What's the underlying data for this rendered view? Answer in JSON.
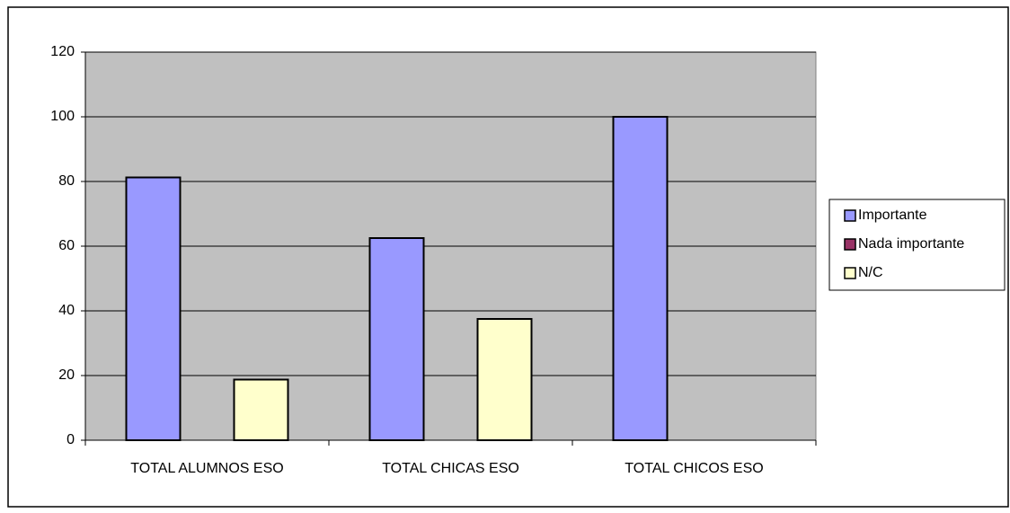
{
  "chart_data": {
    "type": "bar",
    "categories": [
      "TOTAL ALUMNOS ESO",
      "TOTAL CHICAS ESO",
      "TOTAL CHICOS ESO"
    ],
    "series": [
      {
        "name": "Importante",
        "color": "#9999ff",
        "values": [
          81.25,
          62.5,
          100
        ]
      },
      {
        "name": "Nada importante",
        "color": "#993366",
        "values": [
          0,
          0,
          0
        ]
      },
      {
        "name": "N/C",
        "color": "#ffffcc",
        "values": [
          18.75,
          37.5,
          0
        ]
      }
    ],
    "ylim": [
      0,
      120
    ],
    "yticks": [
      0,
      20,
      40,
      60,
      80,
      100,
      120
    ],
    "grid": true,
    "legend": "right"
  }
}
